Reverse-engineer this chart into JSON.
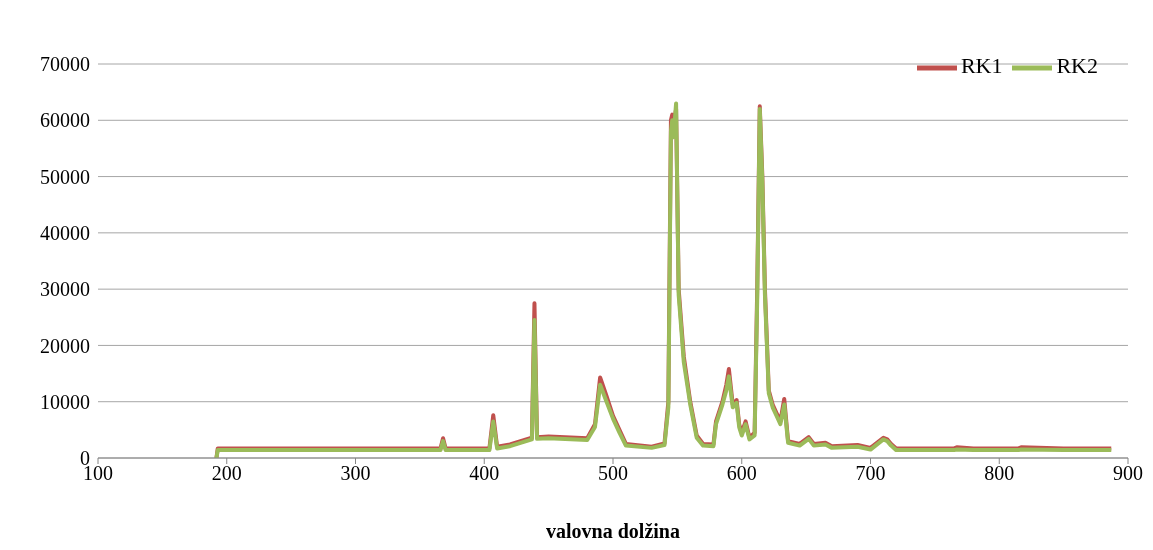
{
  "chart_data": {
    "type": "line",
    "xlabel": "valovna dolžina",
    "xlim": [
      100,
      900
    ],
    "xticks": [
      100,
      200,
      300,
      400,
      500,
      600,
      700,
      800,
      900
    ],
    "ylim": [
      0,
      70000
    ],
    "yticks": [
      0,
      10000,
      20000,
      30000,
      40000,
      50000,
      60000,
      70000
    ],
    "grid": "y",
    "legend": "top right",
    "marker": "none",
    "line_style": "solid",
    "series": [
      {
        "name": "RK1",
        "color": "#c0504d",
        "x": [
          192,
          193,
          250,
          300,
          360,
          366,
          368,
          370,
          380,
          404,
          407,
          410,
          420,
          437,
          439,
          441,
          450,
          480,
          486,
          490,
          495,
          500,
          505,
          510,
          530,
          540,
          543,
          545,
          546,
          547,
          549,
          551,
          555,
          560,
          565,
          570,
          578,
          580,
          585,
          588,
          590,
          593,
          596,
          598,
          600,
          603,
          606,
          610,
          612,
          614,
          616,
          618,
          621,
          624,
          627,
          630,
          633,
          636,
          645,
          652,
          656,
          665,
          670,
          690,
          700,
          710,
          713,
          716,
          720,
          765,
          767,
          780,
          815,
          817,
          850,
          887
        ],
        "values": [
          0,
          1700,
          1700,
          1700,
          1700,
          1700,
          3500,
          1700,
          1700,
          1700,
          7600,
          2000,
          2400,
          3600,
          27500,
          3700,
          3800,
          3500,
          6000,
          14300,
          11000,
          7500,
          5000,
          2500,
          2000,
          2600,
          10000,
          60000,
          61000,
          59000,
          62000,
          30000,
          18000,
          10000,
          4000,
          2500,
          2400,
          6500,
          10000,
          13000,
          15800,
          9500,
          10300,
          6000,
          4500,
          6500,
          3600,
          4500,
          30000,
          62500,
          50000,
          30000,
          12000,
          9500,
          8000,
          6500,
          10500,
          3000,
          2500,
          3700,
          2500,
          2700,
          2100,
          2300,
          1800,
          3600,
          3300,
          2500,
          1700,
          1700,
          1900,
          1700,
          1700,
          1900,
          1700,
          1700
        ]
      },
      {
        "name": "RK2",
        "color": "#9bbb59",
        "x": [
          192,
          193,
          250,
          300,
          360,
          366,
          368,
          370,
          380,
          404,
          407,
          410,
          420,
          437,
          439,
          441,
          450,
          480,
          486,
          490,
          495,
          500,
          505,
          510,
          530,
          540,
          543,
          545,
          546,
          547,
          549,
          551,
          555,
          560,
          565,
          570,
          578,
          580,
          585,
          588,
          590,
          593,
          596,
          598,
          600,
          603,
          606,
          610,
          612,
          614,
          616,
          618,
          621,
          624,
          627,
          630,
          633,
          636,
          645,
          652,
          656,
          665,
          670,
          690,
          700,
          710,
          713,
          716,
          720,
          765,
          767,
          780,
          815,
          817,
          850,
          887
        ],
        "values": [
          0,
          1400,
          1400,
          1400,
          1400,
          1400,
          3000,
          1400,
          1400,
          1400,
          6500,
          1700,
          2100,
          3300,
          24500,
          3400,
          3500,
          3200,
          5500,
          13000,
          10000,
          7000,
          4500,
          2200,
          1800,
          2300,
          9000,
          58000,
          60000,
          57000,
          63000,
          29000,
          17000,
          9500,
          3600,
          2200,
          2100,
          6000,
          9500,
          12000,
          14500,
          9000,
          9800,
          5500,
          4000,
          6000,
          3300,
          4000,
          28000,
          62000,
          49000,
          29000,
          11500,
          9000,
          7500,
          6000,
          9500,
          2700,
          2200,
          3400,
          2200,
          2400,
          1800,
          2000,
          1500,
          3300,
          3000,
          2200,
          1400,
          1400,
          1500,
          1400,
          1400,
          1500,
          1400,
          1400
        ]
      }
    ]
  }
}
